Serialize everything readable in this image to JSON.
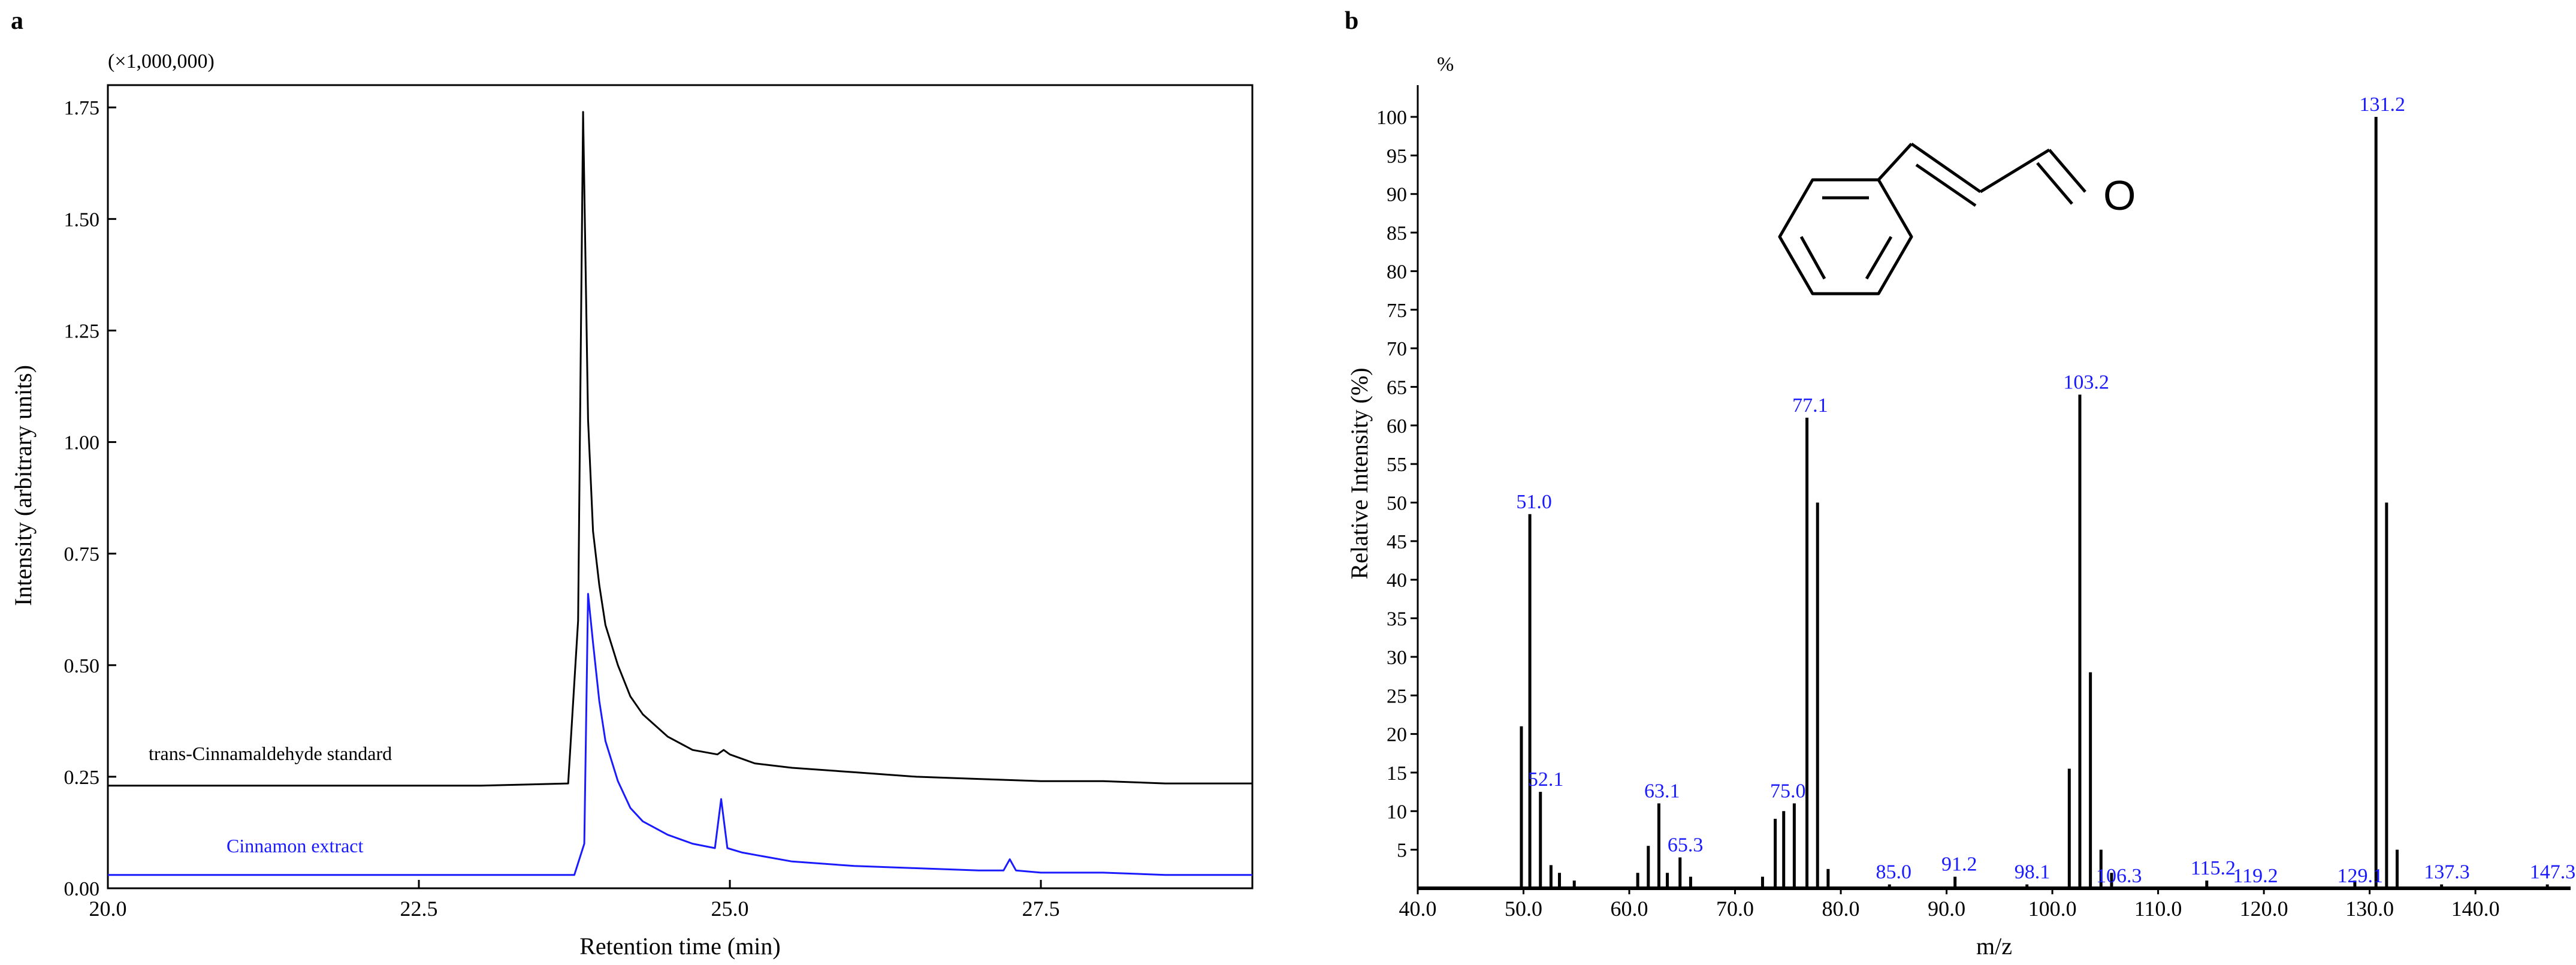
{
  "panel_a": {
    "label": "a",
    "multiplier": "(×1,000,000)",
    "chart_data": {
      "type": "line",
      "xlabel": "Retention time (min)",
      "ylabel": "Intensity (arbitrary units)",
      "xlim": [
        20.0,
        29.2
      ],
      "ylim": [
        0.0,
        1.8
      ],
      "x_ticks": [
        "20.0",
        "22.5",
        "25.0",
        "27.5"
      ],
      "y_ticks": [
        "0.00",
        "0.25",
        "0.50",
        "0.75",
        "1.00",
        "1.25",
        "1.50",
        "1.75"
      ],
      "series": [
        {
          "name": "trans-Cinnamaldehyde standard",
          "color": "#000000",
          "x": [
            20.0,
            21.0,
            22.0,
            23.0,
            23.7,
            23.78,
            23.82,
            23.86,
            23.9,
            23.95,
            24.0,
            24.1,
            24.2,
            24.3,
            24.5,
            24.7,
            24.9,
            24.95,
            25.0,
            25.2,
            25.5,
            26.0,
            26.5,
            27.0,
            27.5,
            28.0,
            28.5,
            29.2
          ],
          "y": [
            0.23,
            0.23,
            0.23,
            0.23,
            0.235,
            0.6,
            1.74,
            1.05,
            0.8,
            0.68,
            0.59,
            0.5,
            0.43,
            0.39,
            0.34,
            0.31,
            0.3,
            0.31,
            0.3,
            0.28,
            0.27,
            0.26,
            0.25,
            0.245,
            0.24,
            0.24,
            0.235,
            0.235
          ]
        },
        {
          "name": "Cinnamon extract",
          "color": "#1a1aff",
          "x": [
            20.0,
            21.0,
            22.0,
            23.0,
            23.75,
            23.83,
            23.86,
            23.9,
            23.95,
            24.0,
            24.1,
            24.2,
            24.3,
            24.5,
            24.7,
            24.88,
            24.93,
            24.98,
            25.1,
            25.3,
            25.5,
            26.0,
            26.5,
            27.0,
            27.2,
            27.25,
            27.3,
            27.5,
            28.0,
            28.5,
            29.2
          ],
          "y": [
            0.03,
            0.03,
            0.03,
            0.03,
            0.03,
            0.1,
            0.66,
            0.55,
            0.42,
            0.33,
            0.24,
            0.18,
            0.15,
            0.12,
            0.1,
            0.09,
            0.2,
            0.09,
            0.08,
            0.07,
            0.06,
            0.05,
            0.045,
            0.04,
            0.04,
            0.065,
            0.04,
            0.035,
            0.035,
            0.03,
            0.03
          ]
        }
      ]
    }
  },
  "panel_b": {
    "label": "b",
    "unit": "%",
    "structure_atom": "O",
    "chart_data": {
      "type": "bar",
      "xlabel": "m/z",
      "ylabel": "Relative Intensity (%)",
      "xlim": [
        40.0,
        149.0
      ],
      "ylim": [
        0,
        102
      ],
      "x_ticks": [
        "40.0",
        "50.0",
        "60.0",
        "70.0",
        "80.0",
        "90.0",
        "100.0",
        "110.0",
        "120.0",
        "130.0",
        "140.0"
      ],
      "y_ticks": [
        "5",
        "10",
        "15",
        "20",
        "25",
        "30",
        "35",
        "40",
        "45",
        "50",
        "55",
        "60",
        "65",
        "70",
        "75",
        "80",
        "85",
        "90",
        "95",
        "100"
      ],
      "peaks": [
        {
          "mz": 49.8,
          "intensity": 21
        },
        {
          "mz": 50.6,
          "intensity": 48.5
        },
        {
          "mz": 51.6,
          "intensity": 12.5
        },
        {
          "mz": 52.6,
          "intensity": 3
        },
        {
          "mz": 53.4,
          "intensity": 2
        },
        {
          "mz": 54.8,
          "intensity": 1
        },
        {
          "mz": 60.8,
          "intensity": 2
        },
        {
          "mz": 61.8,
          "intensity": 5.5
        },
        {
          "mz": 62.8,
          "intensity": 11
        },
        {
          "mz": 63.6,
          "intensity": 2
        },
        {
          "mz": 64.8,
          "intensity": 4
        },
        {
          "mz": 65.8,
          "intensity": 1.5
        },
        {
          "mz": 72.6,
          "intensity": 1.5
        },
        {
          "mz": 73.8,
          "intensity": 9
        },
        {
          "mz": 74.6,
          "intensity": 10
        },
        {
          "mz": 75.6,
          "intensity": 11
        },
        {
          "mz": 76.8,
          "intensity": 61
        },
        {
          "mz": 77.8,
          "intensity": 50
        },
        {
          "mz": 78.8,
          "intensity": 2.5
        },
        {
          "mz": 84.6,
          "intensity": 0.5
        },
        {
          "mz": 90.8,
          "intensity": 1.5
        },
        {
          "mz": 97.6,
          "intensity": 0.5
        },
        {
          "mz": 101.6,
          "intensity": 15.5
        },
        {
          "mz": 102.6,
          "intensity": 64
        },
        {
          "mz": 103.6,
          "intensity": 28
        },
        {
          "mz": 104.6,
          "intensity": 5
        },
        {
          "mz": 105.6,
          "intensity": 2
        },
        {
          "mz": 114.6,
          "intensity": 1
        },
        {
          "mz": 128.6,
          "intensity": 1
        },
        {
          "mz": 130.6,
          "intensity": 100
        },
        {
          "mz": 131.6,
          "intensity": 50
        },
        {
          "mz": 132.6,
          "intensity": 5
        },
        {
          "mz": 136.8,
          "intensity": 0.5
        },
        {
          "mz": 146.8,
          "intensity": 0.5
        }
      ],
      "peak_labels": [
        {
          "text": "51.0",
          "mz": 51.0,
          "at": 48.5
        },
        {
          "text": "52.1",
          "mz": 52.1,
          "at": 12.5
        },
        {
          "text": "63.1",
          "mz": 63.1,
          "at": 11
        },
        {
          "text": "65.3",
          "mz": 65.3,
          "at": 4
        },
        {
          "text": "75.0",
          "mz": 75.0,
          "at": 11
        },
        {
          "text": "77.1",
          "mz": 77.1,
          "at": 61
        },
        {
          "text": "85.0",
          "mz": 85.0,
          "at": 0.5
        },
        {
          "text": "91.2",
          "mz": 91.2,
          "at": 1.5
        },
        {
          "text": "98.1",
          "mz": 98.1,
          "at": 0.5
        },
        {
          "text": "103.2",
          "mz": 103.2,
          "at": 64
        },
        {
          "text": "106.3",
          "mz": 106.3,
          "at": 0
        },
        {
          "text": "115.2",
          "mz": 115.2,
          "at": 1
        },
        {
          "text": "119.2",
          "mz": 119.2,
          "at": 0
        },
        {
          "text": "129.1",
          "mz": 129.1,
          "at": 0
        },
        {
          "text": "131.2",
          "mz": 131.2,
          "at": 100
        },
        {
          "text": "137.3",
          "mz": 137.3,
          "at": 0.5
        },
        {
          "text": "147.3",
          "mz": 147.3,
          "at": 0.5
        }
      ],
      "label_color": "#1a1aff"
    }
  }
}
